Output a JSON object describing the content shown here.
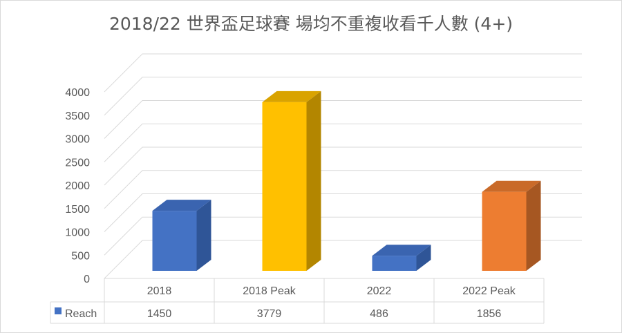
{
  "chart_data": {
    "type": "bar",
    "title": "2018/22 世界盃足球賽 場均不重複收看千人數 (4+)",
    "categories": [
      "2018",
      "2018 Peak",
      "2022",
      "2022 Peak"
    ],
    "series": [
      {
        "name": "Reach",
        "values": [
          1450,
          3779,
          486,
          1856
        ]
      }
    ],
    "ylim": [
      0,
      4000
    ],
    "yticks": [
      0,
      500,
      1000,
      1500,
      2000,
      2500,
      3000,
      3500,
      4000
    ],
    "grid": true,
    "legend": "data-table",
    "bar_colors": [
      {
        "front": "#4472C4",
        "side": "#2F5597",
        "top": "#3A64B0"
      },
      {
        "front": "#FFC000",
        "side": "#B38600",
        "top": "#D9A300"
      },
      {
        "front": "#4472C4",
        "side": "#2F5597",
        "top": "#3A64B0"
      },
      {
        "front": "#ED7D31",
        "side": "#A65722",
        "top": "#C96A29"
      }
    ],
    "legend_color": "#4472C4"
  }
}
